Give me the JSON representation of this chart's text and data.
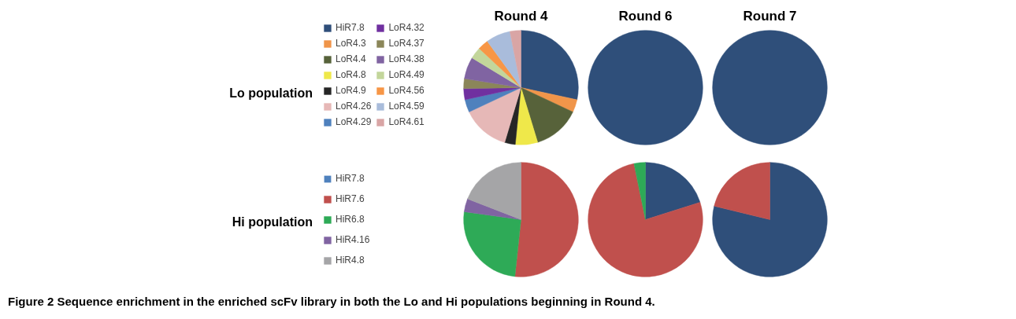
{
  "chart_data": [
    {
      "type": "pie",
      "title": "Round 4",
      "annotations": [
        "Lo population"
      ],
      "legend": "left",
      "categories": [
        "HiR7.8",
        "LoR4.3",
        "LoR4.4",
        "LoR4.8",
        "LoR4.9",
        "LoR4.26",
        "LoR4.29",
        "LoR4.32",
        "LoR4.37",
        "LoR4.38",
        "LoR4.49",
        "LoR4.56",
        "LoR4.59",
        "LoR4.61"
      ],
      "values": [
        28.4,
        3.6,
        13.3,
        6.3,
        3.0,
        13.4,
        3.6,
        3.1,
        2.8,
        6.2,
        3.3,
        3.0,
        6.9,
        3.1
      ],
      "colors": [
        "#2f4f7a",
        "#f0954a",
        "#57623a",
        "#efe84a",
        "#262626",
        "#e6b8b7",
        "#4f81bd",
        "#7030a0",
        "#8b8659",
        "#8064a2",
        "#c3d69b",
        "#f79646",
        "#a9bcdb",
        "#d9a5a5"
      ]
    },
    {
      "type": "pie",
      "title": "Round 6",
      "values": [
        100
      ],
      "colors": [
        "#2f4f7a"
      ]
    },
    {
      "type": "pie",
      "title": "Round 7",
      "values": [
        100
      ],
      "colors": [
        "#2f4f7a"
      ]
    },
    {
      "type": "pie",
      "annotations": [
        "Hi population",
        "Figure 2 Sequence enrichment in the enriched scFv library in both the Lo and Hi populations beginning in Round 4."
      ],
      "legend": "left",
      "categories": [
        "HiR7.8",
        "HiR7.6",
        "HiR6.8",
        "HiR4.16",
        "HiR4.8"
      ],
      "values": [
        0,
        51.7,
        25.5,
        3.7,
        19.1
      ],
      "colors": [
        "#4f81bd",
        "#c0504d",
        "#2eaa57",
        "#8064a2",
        "#a5a5a7"
      ]
    },
    {
      "type": "pie",
      "values": [
        20.1,
        76.7,
        3.2
      ],
      "colors": [
        "#2f4f7a",
        "#c0504d",
        "#2eaa57"
      ]
    },
    {
      "type": "pie",
      "values": [
        78.8,
        21.2
      ],
      "colors": [
        "#2f4f7a",
        "#c0504d"
      ]
    }
  ]
}
